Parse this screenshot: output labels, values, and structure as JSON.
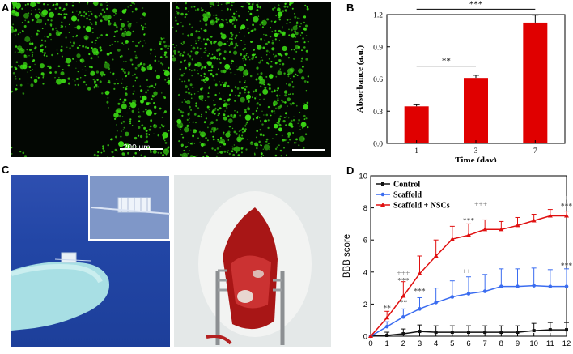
{
  "panels": {
    "a": {
      "letter": "A",
      "scale_text": "200 μm"
    },
    "b": {
      "letter": "B"
    },
    "c": {
      "letter": "C"
    },
    "d": {
      "letter": "D"
    }
  },
  "colors": {
    "bar": "#e00000",
    "control": "#111111",
    "scaffold": "#3a6cf0",
    "scaffold_nscs": "#e01010",
    "fluor": "#3cdc14"
  },
  "chart_data": [
    {
      "type": "bar",
      "panel": "B",
      "categories": [
        "1",
        "3",
        "7"
      ],
      "values": [
        0.345,
        0.61,
        1.125
      ],
      "errors": [
        0.015,
        0.025,
        0.07
      ],
      "xlabel": "Time (day)",
      "ylabel": "Absorbance (a.u.)",
      "ylim": [
        0,
        1.2
      ],
      "yticks": [
        "0.0",
        "0.3",
        "0.6",
        "0.9",
        "1.2"
      ],
      "annotations": [
        {
          "text": "**",
          "between": [
            "1",
            "3"
          ]
        },
        {
          "text": "***",
          "between": [
            "1",
            "7"
          ]
        }
      ]
    },
    {
      "type": "line",
      "panel": "D",
      "xlabel": "",
      "ylabel": "BBB score",
      "x": [
        0,
        1,
        2,
        3,
        4,
        5,
        6,
        7,
        8,
        9,
        10,
        11,
        12
      ],
      "xlim": [
        0,
        12
      ],
      "ylim": [
        0,
        10
      ],
      "yticks": [
        "0",
        "2",
        "4",
        "6",
        "8",
        "10"
      ],
      "legend": "top-left",
      "series": [
        {
          "name": "Control",
          "values": [
            0,
            0.05,
            0.15,
            0.3,
            0.25,
            0.25,
            0.25,
            0.25,
            0.25,
            0.25,
            0.35,
            0.4,
            0.4
          ],
          "errors": [
            0,
            0.2,
            0.3,
            0.4,
            0.4,
            0.4,
            0.4,
            0.4,
            0.4,
            0.4,
            0.45,
            0.45,
            0.45
          ]
        },
        {
          "name": "Scaffold",
          "values": [
            0,
            0.6,
            1.2,
            1.7,
            2.1,
            2.45,
            2.65,
            2.8,
            3.1,
            3.1,
            3.15,
            3.1,
            3.1
          ],
          "errors": [
            0,
            0.3,
            0.5,
            0.7,
            0.9,
            1.0,
            1.05,
            1.05,
            1.1,
            1.1,
            1.1,
            1.05,
            1.1
          ]
        },
        {
          "name": "Scaffold + NSCs",
          "values": [
            0,
            1.15,
            2.5,
            3.9,
            5.0,
            6.05,
            6.3,
            6.65,
            6.65,
            6.9,
            7.2,
            7.5,
            7.5
          ],
          "errors": [
            0,
            0.4,
            0.9,
            1.1,
            1.0,
            0.8,
            0.7,
            0.6,
            0.5,
            0.5,
            0.4,
            0.4,
            0.3
          ]
        }
      ],
      "annotations": [
        {
          "x": 1,
          "text": "**"
        },
        {
          "x": 2,
          "text": "+++"
        },
        {
          "x": 2,
          "text": "***"
        },
        {
          "x": 2,
          "text": "**"
        },
        {
          "x": 3,
          "text": "***"
        },
        {
          "x": 6,
          "text": "***"
        },
        {
          "x": 6,
          "text": "+++"
        },
        {
          "x": 12,
          "text": "+++"
        },
        {
          "x": 12,
          "text": "***"
        },
        {
          "x": 12,
          "text": "***"
        }
      ]
    }
  ]
}
